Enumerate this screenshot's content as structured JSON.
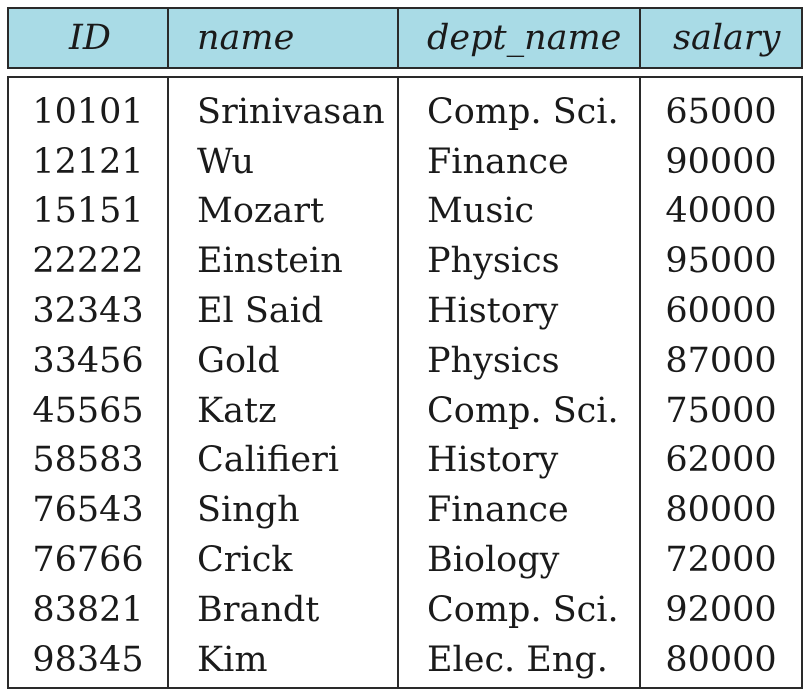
{
  "table": {
    "header_bg": "#a9dbe6",
    "border_color": "#2a2a2a",
    "columns": [
      "ID",
      "name",
      "dept_name",
      "salary"
    ],
    "rows": [
      [
        "10101",
        "Srinivasan",
        "Comp. Sci.",
        "65000"
      ],
      [
        "12121",
        "Wu",
        "Finance",
        "90000"
      ],
      [
        "15151",
        "Mozart",
        "Music",
        "40000"
      ],
      [
        "22222",
        "Einstein",
        "Physics",
        "95000"
      ],
      [
        "32343",
        "El Said",
        "History",
        "60000"
      ],
      [
        "33456",
        "Gold",
        "Physics",
        "87000"
      ],
      [
        "45565",
        "Katz",
        "Comp. Sci.",
        "75000"
      ],
      [
        "58583",
        "Califieri",
        "History",
        "62000"
      ],
      [
        "76543",
        "Singh",
        "Finance",
        "80000"
      ],
      [
        "76766",
        "Crick",
        "Biology",
        "72000"
      ],
      [
        "83821",
        "Brandt",
        "Comp. Sci.",
        "92000"
      ],
      [
        "98345",
        "Kim",
        "Elec. Eng.",
        "80000"
      ]
    ]
  }
}
